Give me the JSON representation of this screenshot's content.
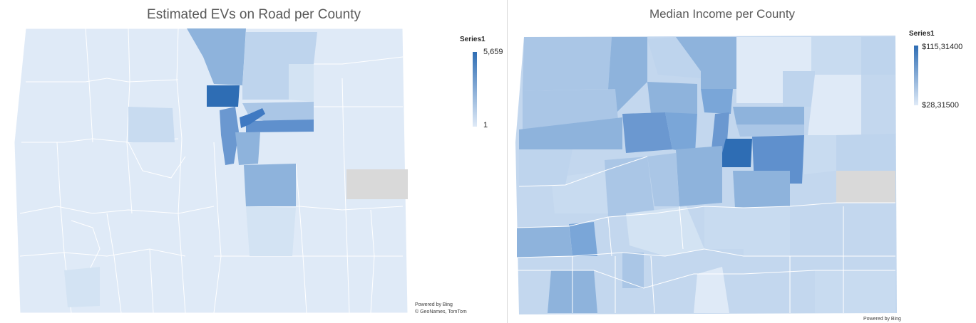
{
  "maps": [
    {
      "title": "Estimated EVs on Road per County",
      "legend": {
        "series": "Series1",
        "max_label": "5,659",
        "min_label": "1",
        "color_low": "#dfeaf7",
        "color_high": "#2e6db4"
      },
      "credit": {
        "line1": "Powered by Bing",
        "line2": "© GeoNames, TomTom"
      }
    },
    {
      "title": "Median Income per County",
      "legend": {
        "series": "Series1",
        "max_label": "$115,31400",
        "min_label": "$28,31500",
        "color_low": "#dfeaf7",
        "color_high": "#2e6db4"
      },
      "credit": {
        "line1": "Powered by Bing"
      }
    }
  ],
  "colors": {
    "no_data": "#d9d9d9",
    "county_border": "#ffffff"
  }
}
